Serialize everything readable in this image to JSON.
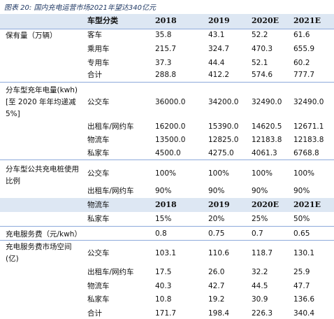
{
  "title": "图表 20: 国内充电运营市场2021年望达340亿元",
  "header": [
    "车型分类",
    "2018",
    "2019",
    "2020E",
    "2021E"
  ],
  "groups": [
    {
      "label": "保有量（万辆）",
      "rows": [
        {
          "type": "客车",
          "values": [
            "35.8",
            "43.1",
            "52.2",
            "61.6"
          ]
        },
        {
          "type": "乘用车",
          "values": [
            "215.7",
            "324.7",
            "470.3",
            "655.9"
          ]
        },
        {
          "type": "专用车",
          "values": [
            "37.3",
            "44.4",
            "52.1",
            "60.2"
          ]
        },
        {
          "type": "合计",
          "values": [
            "288.8",
            "412.2",
            "574.6",
            "777.7"
          ]
        }
      ]
    },
    {
      "label": "分车型充年电量(kwh)[至 2020 年年均递减5%]",
      "rows": [
        {
          "type": "公交车",
          "values": [
            "36000.0",
            "34200.0",
            "32490.0",
            "32490.0"
          ]
        },
        {
          "type": "出租车/网约车",
          "values": [
            "16200.0",
            "15390.0",
            "14620.5",
            "12671.1"
          ]
        },
        {
          "type": "物流车",
          "values": [
            "13500.0",
            "12825.0",
            "12183.8",
            "12183.8"
          ]
        },
        {
          "type": "私家车",
          "values": [
            "4500.0",
            "4275.0",
            "4061.3",
            "6768.8"
          ]
        }
      ]
    },
    {
      "label": "分车型公共充电桩使用比例",
      "rows": [
        {
          "type": "公交车",
          "values": [
            "100%",
            "100%",
            "100%",
            "100%"
          ]
        },
        {
          "type": "出租车/网约车",
          "values": [
            "90%",
            "90%",
            "90%",
            "90%"
          ]
        },
        {
          "type": "物流车",
          "values": [
            "2018",
            "2019",
            "2020E",
            "2021E"
          ]
        },
        {
          "type": "私家车",
          "values": [
            "15%",
            "20%",
            "25%",
            "50%"
          ]
        }
      ]
    },
    {
      "label": "充电服务费（元/kwh）",
      "rows": [
        {
          "values": [
            "0.8",
            "0.75",
            "0.7",
            "0.65"
          ]
        }
      ]
    },
    {
      "label": "充电服务费市场空间(亿)",
      "rows": [
        {
          "type": "公交车",
          "values": [
            "103.1",
            "110.6",
            "118.7",
            "130.1"
          ]
        },
        {
          "type": "出租车/网约车",
          "values": [
            "17.5",
            "26.0",
            "32.2",
            "25.9"
          ]
        },
        {
          "type": "物流车",
          "values": [
            "40.3",
            "42.7",
            "44.5",
            "47.7"
          ]
        },
        {
          "type": "私家车",
          "values": [
            "10.8",
            "19.2",
            "30.9",
            "136.6"
          ]
        },
        {
          "type": "合计",
          "values": [
            "171.7",
            "198.4",
            "226.3",
            "340.4"
          ]
        }
      ]
    }
  ]
}
